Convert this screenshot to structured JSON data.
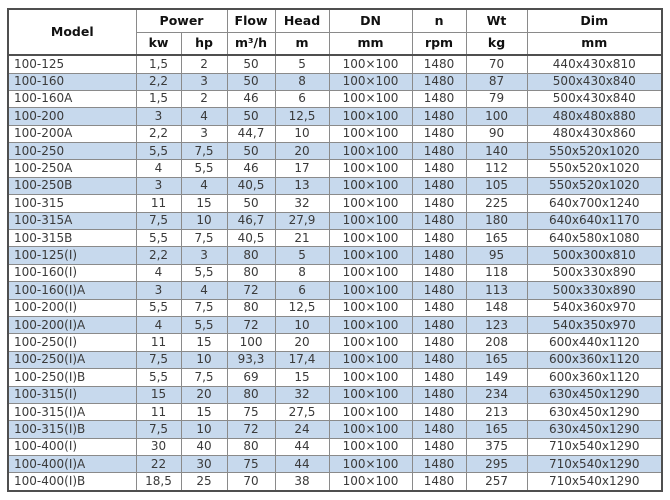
{
  "chart_data": {
    "type": "table",
    "header": {
      "model": "Model",
      "power": "Power",
      "kw": "kw",
      "hp": "hp",
      "flow": "Flow",
      "flow_unit": "m³/h",
      "head": "Head",
      "head_unit": "m",
      "dn": "DN",
      "dn_unit": "mm",
      "n": "n",
      "n_unit": "rpm",
      "wt": "Wt",
      "wt_unit": "kg",
      "dim": "Dim",
      "dim_unit": "mm"
    },
    "column_keys": [
      "model",
      "kw",
      "hp",
      "flow",
      "head",
      "dn",
      "n",
      "wt",
      "dim"
    ],
    "rows": [
      [
        "100-125",
        "1,5",
        "2",
        "50",
        "5",
        "100×100",
        "1480",
        "70",
        "440x430x810"
      ],
      [
        "100-160",
        "2,2",
        "3",
        "50",
        "8",
        "100×100",
        "1480",
        "87",
        "500x430x840"
      ],
      [
        "100-160A",
        "1,5",
        "2",
        "46",
        "6",
        "100×100",
        "1480",
        "79",
        "500x430x840"
      ],
      [
        "100-200",
        "3",
        "4",
        "50",
        "12,5",
        "100×100",
        "1480",
        "100",
        "480x480x880"
      ],
      [
        "100-200A",
        "2,2",
        "3",
        "44,7",
        "10",
        "100×100",
        "1480",
        "90",
        "480x430x860"
      ],
      [
        "100-250",
        "5,5",
        "7,5",
        "50",
        "20",
        "100×100",
        "1480",
        "140",
        "550x520x1020"
      ],
      [
        "100-250A",
        "4",
        "5,5",
        "46",
        "17",
        "100×100",
        "1480",
        "112",
        "550x520x1020"
      ],
      [
        "100-250B",
        "3",
        "4",
        "40,5",
        "13",
        "100×100",
        "1480",
        "105",
        "550x520x1020"
      ],
      [
        "100-315",
        "11",
        "15",
        "50",
        "32",
        "100×100",
        "1480",
        "225",
        "640x700x1240"
      ],
      [
        "100-315A",
        "7,5",
        "10",
        "46,7",
        "27,9",
        "100×100",
        "1480",
        "180",
        "640x640x1170"
      ],
      [
        "100-315B",
        "5,5",
        "7,5",
        "40,5",
        "21",
        "100×100",
        "1480",
        "165",
        "640x580x1080"
      ],
      [
        "100-125(I)",
        "2,2",
        "3",
        "80",
        "5",
        "100×100",
        "1480",
        "95",
        "500x300x810"
      ],
      [
        "100-160(I)",
        "4",
        "5,5",
        "80",
        "8",
        "100×100",
        "1480",
        "118",
        "500x330x890"
      ],
      [
        "100-160(I)A",
        "3",
        "4",
        "72",
        "6",
        "100×100",
        "1480",
        "113",
        "500x330x890"
      ],
      [
        "100-200(I)",
        "5,5",
        "7,5",
        "80",
        "12,5",
        "100×100",
        "1480",
        "148",
        "540x360x970"
      ],
      [
        "100-200(I)A",
        "4",
        "5,5",
        "72",
        "10",
        "100×100",
        "1480",
        "123",
        "540x350x970"
      ],
      [
        "100-250(I)",
        "11",
        "15",
        "100",
        "20",
        "100×100",
        "1480",
        "208",
        "600x440x1120"
      ],
      [
        "100-250(I)A",
        "7,5",
        "10",
        "93,3",
        "17,4",
        "100×100",
        "1480",
        "165",
        "600x360x1120"
      ],
      [
        "100-250(I)B",
        "5,5",
        "7,5",
        "69",
        "15",
        "100×100",
        "1480",
        "149",
        "600x360x1120"
      ],
      [
        "100-315(I)",
        "15",
        "20",
        "80",
        "32",
        "100×100",
        "1480",
        "234",
        "630x450x1290"
      ],
      [
        "100-315(I)A",
        "11",
        "15",
        "75",
        "27,5",
        "100×100",
        "1480",
        "213",
        "630x450x1290"
      ],
      [
        "100-315(I)B",
        "7,5",
        "10",
        "72",
        "24",
        "100×100",
        "1480",
        "165",
        "630x450x1290"
      ],
      [
        "100-400(I)",
        "30",
        "40",
        "80",
        "44",
        "100×100",
        "1480",
        "375",
        "710x540x1290"
      ],
      [
        "100-400(I)A",
        "22",
        "30",
        "75",
        "44",
        "100×100",
        "1480",
        "295",
        "710x540x1290"
      ],
      [
        "100-400(I)B",
        "18,5",
        "25",
        "70",
        "38",
        "100×100",
        "1480",
        "257",
        "710x540x1290"
      ]
    ],
    "layout": {
      "banding": "alternate rows light blue starting from second data row",
      "grid": "on"
    }
  },
  "colors": {
    "band_blue": "#c7d9ed",
    "grid_line": "#8a8a8a",
    "outer_border": "#4f4f4f",
    "header_text": "#111111",
    "body_text": "#3a3a3a",
    "background": "#ffffff"
  }
}
